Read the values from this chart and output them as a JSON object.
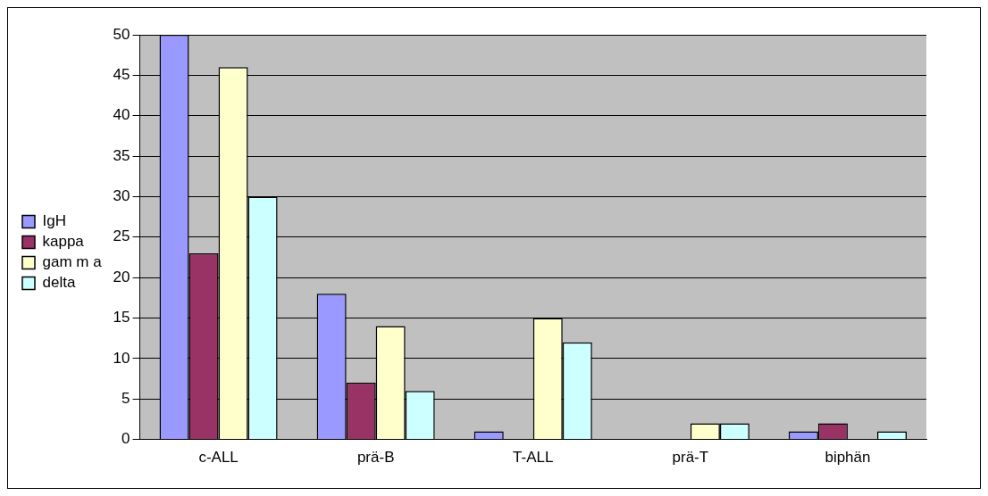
{
  "chart_data": {
    "type": "bar",
    "categories": [
      "c-ALL",
      "prä-B",
      "T-ALL",
      "prä-T",
      "biphän"
    ],
    "series": [
      {
        "name": "IgH",
        "color": "#9999ff",
        "values": [
          50,
          18,
          1,
          0,
          1
        ]
      },
      {
        "name": "kappa",
        "color": "#993366",
        "values": [
          23,
          7,
          0,
          0,
          2
        ]
      },
      {
        "name": "gam m a",
        "color": "#ffffcc",
        "values": [
          46,
          14,
          15,
          2,
          0
        ]
      },
      {
        "name": "delta",
        "color": "#ccffff",
        "values": [
          30,
          6,
          12,
          2,
          1
        ]
      }
    ],
    "ylim": [
      0,
      50
    ],
    "yticks": [
      0,
      5,
      10,
      15,
      20,
      25,
      30,
      35,
      40,
      45,
      50
    ],
    "grid": "y",
    "legend": "left"
  }
}
